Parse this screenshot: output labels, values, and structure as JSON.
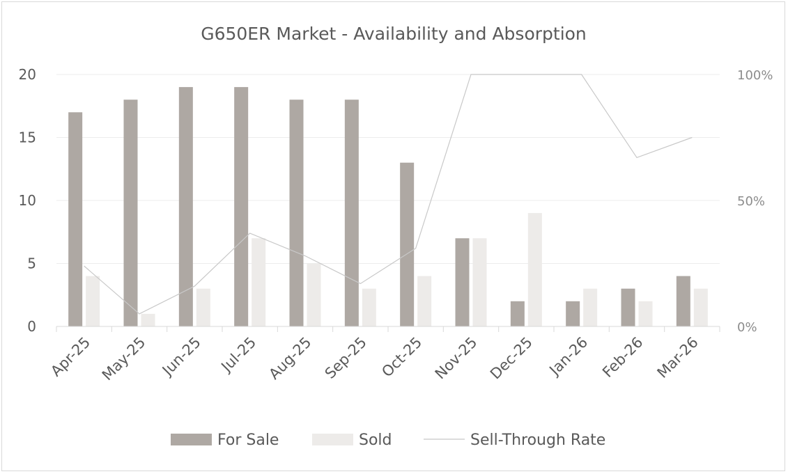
{
  "chart_data": {
    "type": "bar",
    "title": "G650ER Market - Availability and Absorption",
    "categories": [
      "Apr-25",
      "May-25",
      "Jun-25",
      "Jul-25",
      "Aug-25",
      "Sep-25",
      "Oct-25",
      "Nov-25",
      "Dec-25",
      "Jan-26",
      "Feb-26",
      "Mar-26"
    ],
    "series": [
      {
        "name": "For Sale",
        "type": "bar",
        "axis": "left",
        "color": "#aea8a3",
        "values": [
          17,
          18,
          19,
          19,
          18,
          18,
          13,
          7,
          2,
          2,
          3,
          4
        ]
      },
      {
        "name": "Sold",
        "type": "bar",
        "axis": "left",
        "color": "#edebe9",
        "values": [
          4,
          1,
          3,
          7,
          5,
          3,
          4,
          7,
          9,
          3,
          2,
          3
        ]
      },
      {
        "name": "Sell-Through Rate",
        "type": "line",
        "axis": "right",
        "color": "#c8c8c8",
        "values": [
          0.24,
          0.05,
          0.16,
          0.37,
          0.28,
          0.17,
          0.31,
          1.0,
          1.0,
          1.0,
          0.67,
          0.75
        ]
      }
    ],
    "ylim": [
      0,
      20
    ],
    "yticks": [
      "0",
      "5",
      "10",
      "15",
      "20"
    ],
    "y2lim": [
      0,
      1
    ],
    "y2ticks": [
      "0%",
      "50%",
      "100%"
    ],
    "grid": true,
    "legend": "bottom"
  }
}
